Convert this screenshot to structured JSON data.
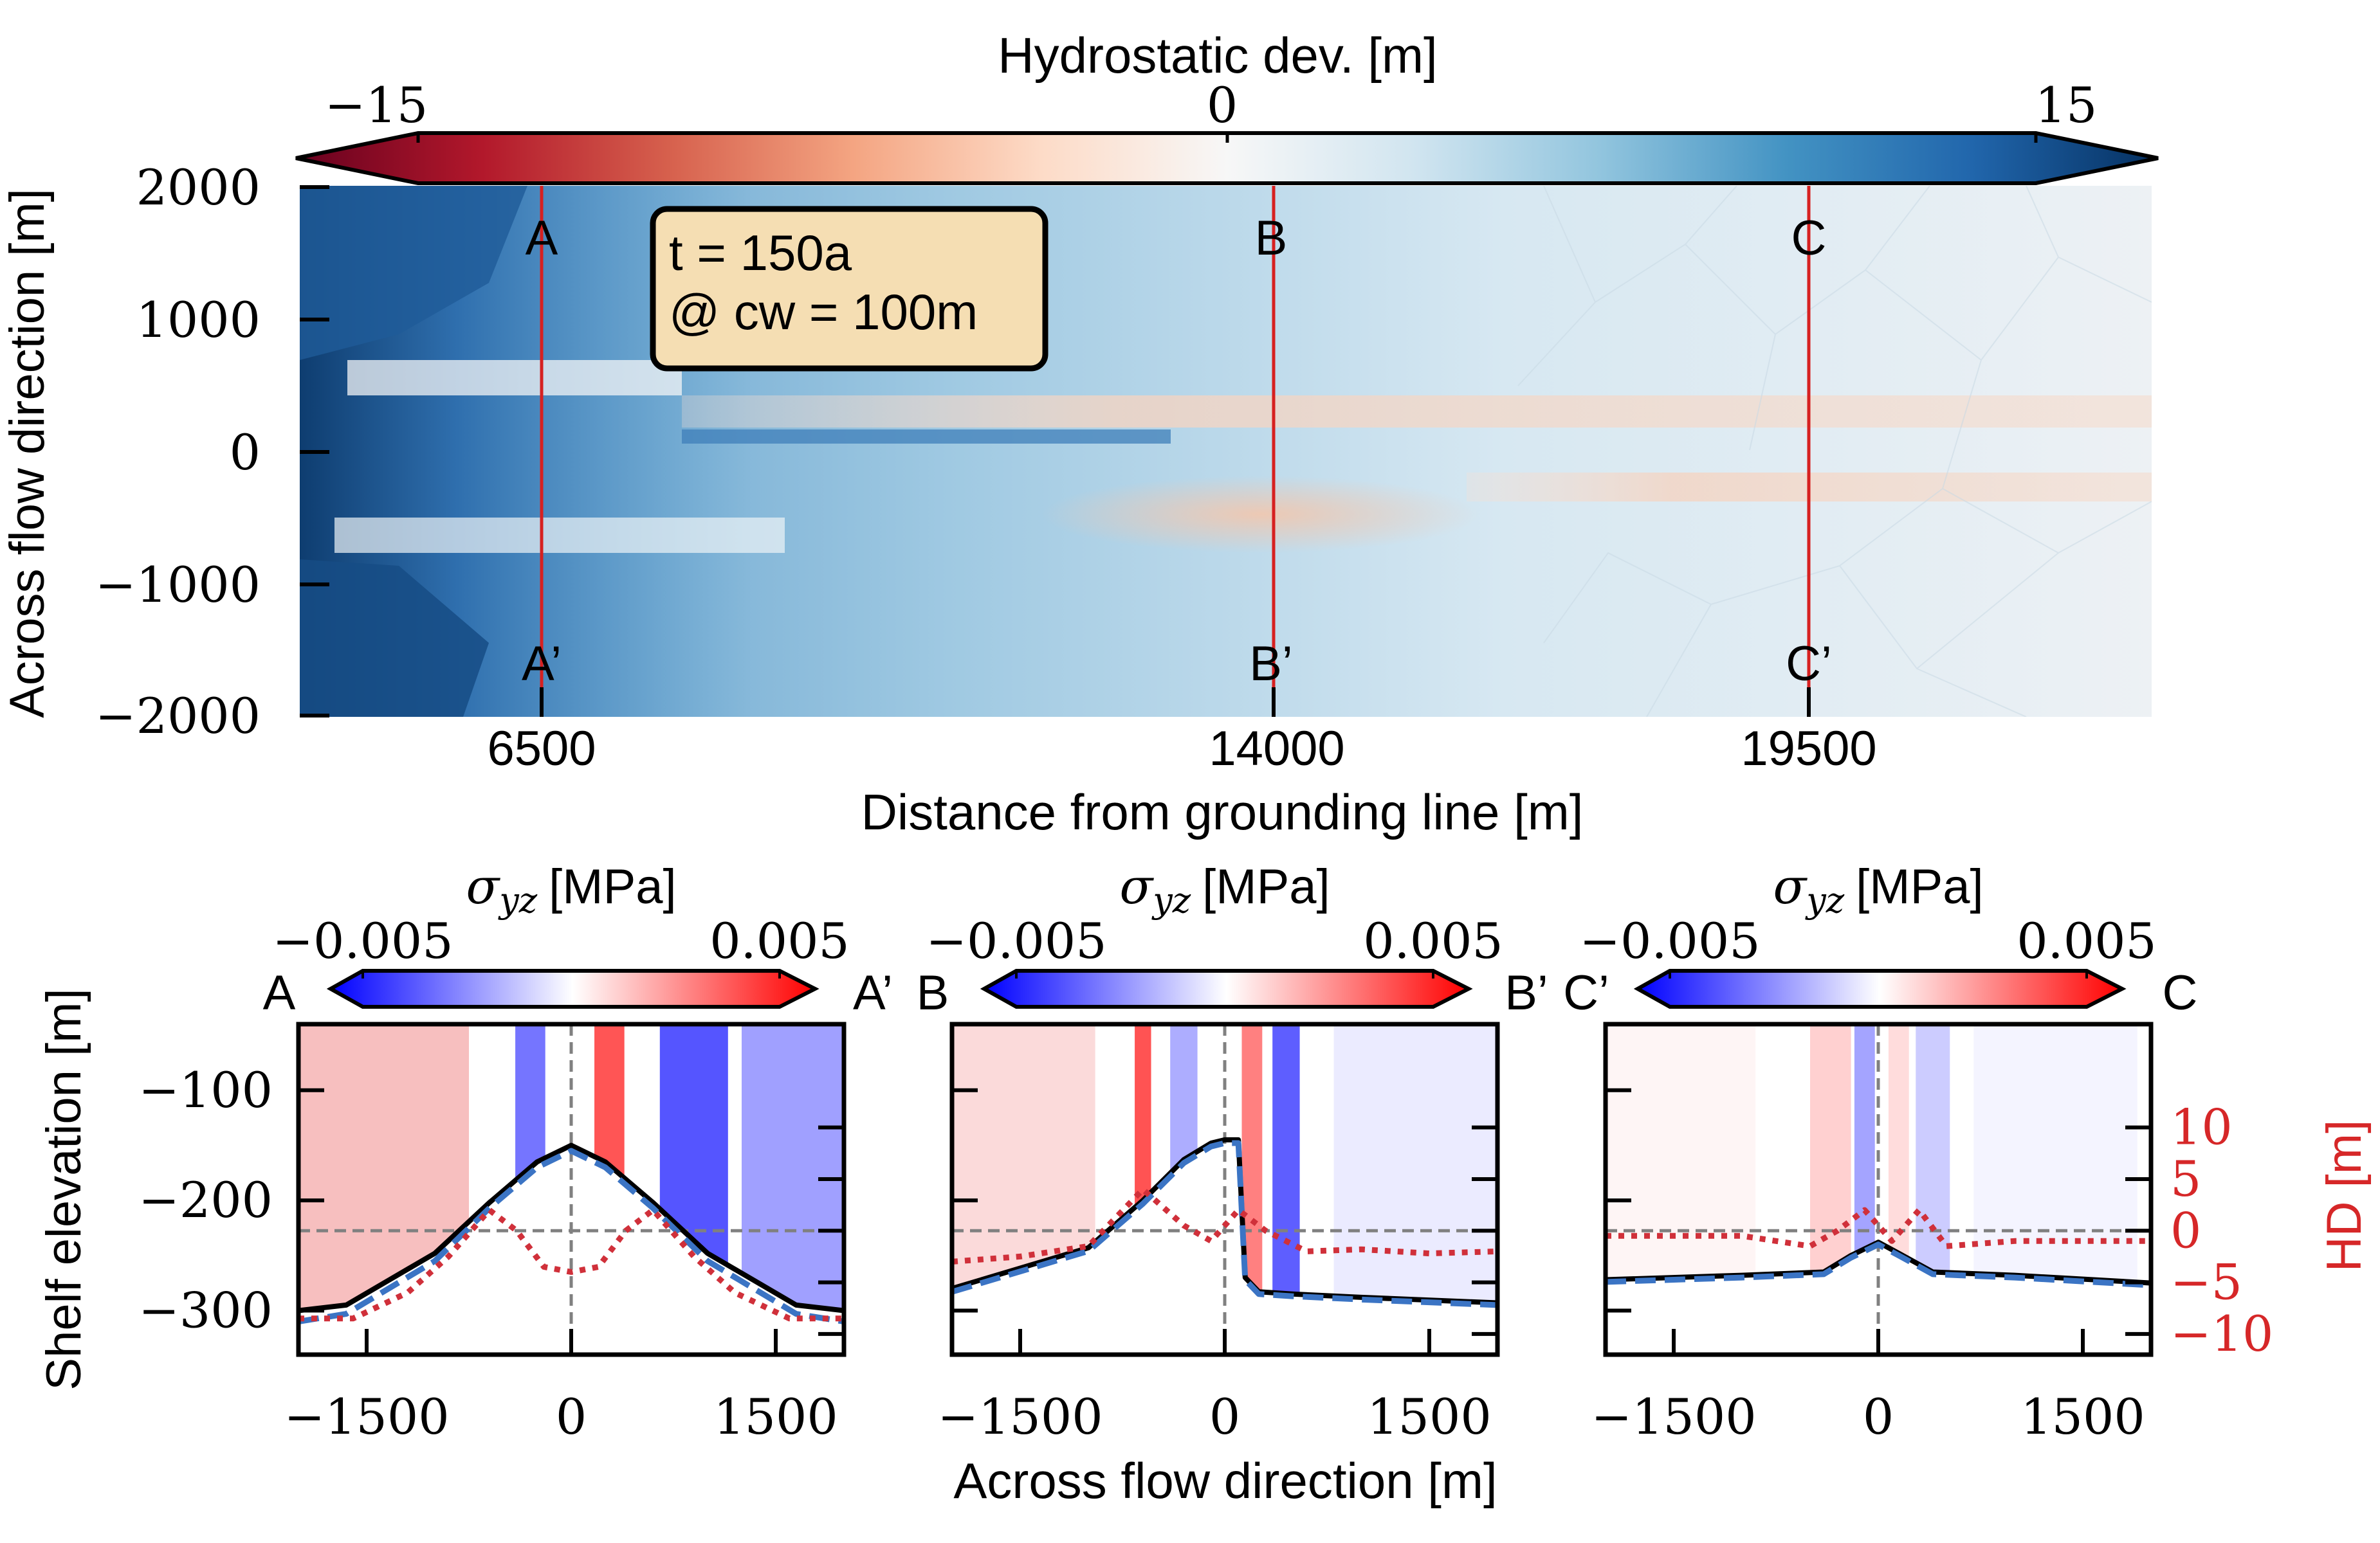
{
  "figure": {
    "top_panel": {
      "colorbar": {
        "title": "Hydrostatic dev. [m]",
        "ticks": [
          "−15",
          "0",
          "15"
        ],
        "vmin": -15,
        "vmax": 15,
        "extend": "both",
        "colormap": [
          "#67001f",
          "#b2182b",
          "#d6604d",
          "#f4a582",
          "#fddbc7",
          "#f7f7f7",
          "#d1e5f0",
          "#92c5de",
          "#4393c3",
          "#2166ac",
          "#053061"
        ]
      },
      "xlabel": "Distance from grounding line [m]",
      "ylabel": "Across flow direction [m]",
      "yticks": [
        "2000",
        "1000",
        "0",
        "−1000",
        "−2000"
      ],
      "xticks": [
        "6500",
        "14000",
        "19500"
      ],
      "sections": [
        {
          "x": 6500,
          "top_label": "A",
          "bottom_label": "A’"
        },
        {
          "x": 14000,
          "top_label": "B",
          "bottom_label": "B’"
        },
        {
          "x": 19500,
          "top_label": "C",
          "bottom_label": "C’"
        }
      ],
      "info_box": {
        "line1": "t = 150a",
        "line2": "@ cw = 100m"
      },
      "section_line_color": "#d62020"
    },
    "bottom_panels": {
      "colorbar_title_sym": "σ",
      "colorbar_title_sub": "yz",
      "colorbar_title_unit": "[MPa]",
      "colorbar_ticks": [
        "−0.005",
        "0.005"
      ],
      "colormap": [
        "#0000ff",
        "#ffffff",
        "#ff0000"
      ],
      "xlabel": "Across flow direction [m]",
      "ylabel": "Shelf elevation [m]",
      "xticks": [
        "−1500",
        "0",
        "1500"
      ],
      "yticks": [
        "−100",
        "−200",
        "−300"
      ],
      "right_axis": {
        "label": "HD [m]",
        "ticks": [
          "10",
          "5",
          "0",
          "−5",
          "−10"
        ],
        "color": "#d62728"
      },
      "panels": [
        {
          "left_label": "A",
          "right_label": "A’"
        },
        {
          "left_label": "B",
          "right_label": "B’"
        },
        {
          "left_label": "C’",
          "right_label": "C"
        }
      ]
    }
  },
  "chart_data": [
    {
      "type": "heatmap",
      "xlabel": "Distance from grounding line [m]",
      "ylabel": "Across flow direction [m]",
      "ylim": [
        -2000,
        2000
      ],
      "colorbar": {
        "label": "Hydrostatic dev. [m]",
        "range": [
          -15,
          15
        ]
      },
      "section_lines_x": [
        6500,
        14000,
        19500
      ],
      "annotations": [
        "A",
        "A’",
        "B",
        "B’",
        "C",
        "C’",
        "t = 150a",
        "@ cw = 100m"
      ]
    },
    {
      "type": "line",
      "section": "A–A’",
      "xlabel": "Across flow direction [m]",
      "ylabel": "Shelf elevation [m]",
      "xlim": [
        -2000,
        2000
      ],
      "ylim": [
        -340,
        -40
      ],
      "hd_ylim": [
        -12,
        20
      ],
      "series": [
        {
          "style": "black-solid",
          "x": [
            -2000,
            -1650,
            -1000,
            -600,
            -250,
            0,
            250,
            600,
            1000,
            1650,
            2000
          ],
          "y": [
            -300,
            -295,
            -248,
            -202,
            -165,
            -150,
            -165,
            -202,
            -248,
            -295,
            -300
          ]
        },
        {
          "style": "blue-dashed",
          "x": [
            -2000,
            -1650,
            -1000,
            -600,
            -250,
            0,
            250,
            600,
            1000,
            1650,
            2000
          ],
          "y": [
            -310,
            -303,
            -255,
            -207,
            -170,
            -155,
            -170,
            -207,
            -255,
            -303,
            -310
          ]
        },
        {
          "style": "red-dotted",
          "axis": "HD [m]",
          "x": [
            -2000,
            -1600,
            -1200,
            -900,
            -600,
            -400,
            -200,
            0,
            200,
            400,
            600,
            900,
            1200,
            1600,
            2000
          ],
          "y": [
            -8.5,
            -8.5,
            -6,
            -2.5,
            2,
            0,
            -3.5,
            -4,
            -3.5,
            0,
            2,
            -2.5,
            -6,
            -8.5,
            -8.5
          ]
        }
      ]
    },
    {
      "type": "line",
      "section": "B–B’",
      "xlabel": "Across flow direction [m]",
      "ylabel": "Shelf elevation [m]",
      "xlim": [
        -2000,
        2000
      ],
      "ylim": [
        -340,
        -40
      ],
      "hd_ylim": [
        -12,
        20
      ],
      "series": [
        {
          "style": "black-solid",
          "x": [
            -2000,
            -1000,
            -600,
            -300,
            -100,
            0,
            100,
            150,
            250,
            500,
            1000,
            2000
          ],
          "y": [
            -280,
            -243,
            -200,
            -163,
            -148,
            -145,
            -145,
            -270,
            -283,
            -285,
            -288,
            -293
          ]
        },
        {
          "style": "blue-dashed",
          "x": [
            -2000,
            -1000,
            -600,
            -300,
            -100,
            0,
            100,
            150,
            250,
            500,
            1000,
            2000
          ],
          "y": [
            -283,
            -246,
            -203,
            -166,
            -151,
            -148,
            -148,
            -272,
            -285,
            -287,
            -290,
            -295
          ]
        },
        {
          "style": "red-dotted",
          "axis": "HD [m]",
          "x": [
            -2000,
            -1500,
            -1000,
            -600,
            -300,
            -100,
            100,
            300,
            600,
            1000,
            1500,
            2000
          ],
          "y": [
            -3,
            -2.5,
            -1.5,
            4,
            0.5,
            -1,
            2,
            0,
            -2,
            -1.8,
            -2.2,
            -2
          ]
        }
      ]
    },
    {
      "type": "line",
      "section": "C’–C",
      "xlabel": "Across flow direction [m]",
      "ylabel": "Shelf elevation [m]",
      "xlim": [
        -2000,
        2000
      ],
      "ylim": [
        -340,
        -40
      ],
      "hd_ylim": [
        -12,
        20
      ],
      "series": [
        {
          "style": "black-solid",
          "x": [
            -2000,
            -1000,
            -400,
            -200,
            0,
            150,
            400,
            1000,
            2000
          ],
          "y": [
            -272,
            -268,
            -265,
            -250,
            -238,
            -248,
            -265,
            -268,
            -275
          ]
        },
        {
          "style": "blue-dashed",
          "x": [
            -2000,
            -1000,
            -400,
            -200,
            0,
            150,
            400,
            1000,
            2000
          ],
          "y": [
            -274,
            -270,
            -267,
            -252,
            -240,
            -250,
            -267,
            -270,
            -277
          ]
        },
        {
          "style": "red-dotted",
          "axis": "HD [m]",
          "x": [
            -2000,
            -1500,
            -1000,
            -500,
            -300,
            -100,
            100,
            300,
            500,
            1000,
            1500,
            2000
          ],
          "y": [
            -0.5,
            -0.5,
            -0.5,
            -1.5,
            0,
            2,
            -1,
            2,
            -1.5,
            -1,
            -1,
            -1
          ]
        }
      ]
    }
  ]
}
